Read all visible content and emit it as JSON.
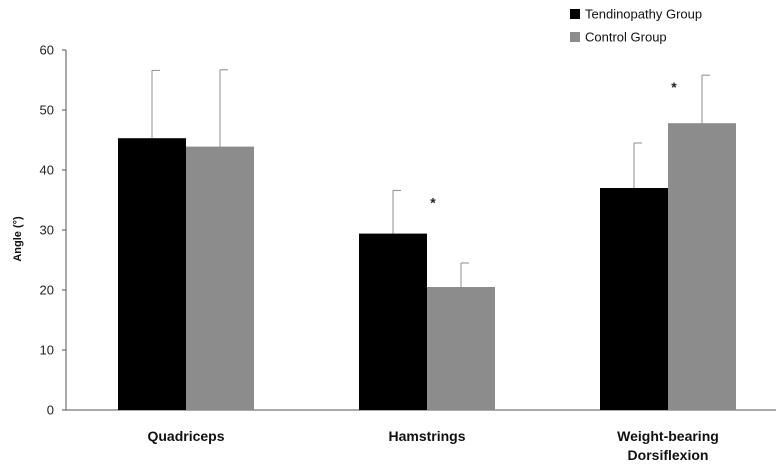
{
  "chart_data": {
    "type": "bar",
    "categories": [
      "Quadriceps",
      "Hamstrings",
      "Weight-bearing Dorsiflexion"
    ],
    "category_lines": [
      [
        "Quadriceps"
      ],
      [
        "Hamstrings"
      ],
      [
        "Weight-bearing",
        "Dorsiflexion"
      ]
    ],
    "series": [
      {
        "name": "Tendinopathy Group",
        "color": "#000000",
        "values": [
          45.3,
          29.4,
          37.0
        ],
        "errors": [
          11.3,
          7.2,
          7.5
        ]
      },
      {
        "name": "Control Group",
        "color": "#8c8c8c",
        "values": [
          43.9,
          20.5,
          47.8
        ],
        "errors": [
          12.8,
          4.0,
          8.0
        ]
      }
    ],
    "significance": [
      {
        "category_index": 1,
        "label": "*"
      },
      {
        "category_index": 2,
        "label": "*"
      }
    ],
    "xlabel": "",
    "ylabel": "Angle (°)",
    "ylim": [
      0,
      60
    ],
    "yticks": [
      "0",
      "10",
      "20",
      "30",
      "40",
      "50",
      "60"
    ],
    "grid": false,
    "legend_position": "top-right"
  }
}
